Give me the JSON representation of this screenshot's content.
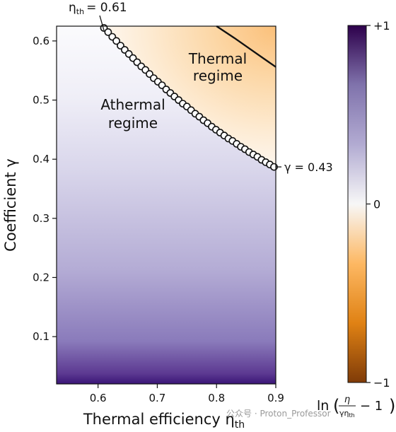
{
  "chart_data": {
    "type": "heatmap",
    "xlabel": "Thermal efficiency η",
    "xlabel_sub": "th",
    "ylabel": "Coefficient γ",
    "xlim": [
      0.53,
      0.9
    ],
    "ylim": [
      0.02,
      0.625
    ],
    "x_ticks": [
      0.6,
      0.7,
      0.8,
      0.9
    ],
    "x_tick_labels": [
      "0.6",
      "0.7",
      "0.8",
      "0.9"
    ],
    "y_ticks": [
      0.1,
      0.2,
      0.3,
      0.4,
      0.5,
      0.6
    ],
    "y_tick_labels": [
      "0.1",
      "0.2",
      "0.3",
      "0.4",
      "0.5",
      "0.6"
    ],
    "color_scale": {
      "min": -1,
      "max": 1,
      "colors": [
        "#7f3b08",
        "#e08214",
        "#fdb863",
        "#f7f7f7",
        "#b2abd2",
        "#8073ac",
        "#2d004b"
      ],
      "tick_labels": [
        "−1",
        "0",
        "+1"
      ],
      "label_prefix": "ln",
      "label_num": "η",
      "label_den": "γη",
      "label_den_sub": "th",
      "label_suffix": "− 1",
      "low_color": "#7f3b08",
      "high_color": "#2d004b"
    },
    "regions": {
      "thermal": [
        "Thermal",
        "regime"
      ],
      "athermal": [
        "Athermal",
        "regime"
      ]
    },
    "annotations": {
      "eta_label": "η",
      "eta_sub": "th",
      "eta_value": "= 0.61",
      "gamma_label": "γ = 0.43"
    },
    "boundary_points": [
      {
        "x": 0.61,
        "y": 0.622
      },
      {
        "x": 0.617,
        "y": 0.615
      },
      {
        "x": 0.624,
        "y": 0.607
      },
      {
        "x": 0.631,
        "y": 0.6
      },
      {
        "x": 0.638,
        "y": 0.592
      },
      {
        "x": 0.645,
        "y": 0.585
      },
      {
        "x": 0.652,
        "y": 0.578
      },
      {
        "x": 0.659,
        "y": 0.571
      },
      {
        "x": 0.666,
        "y": 0.564
      },
      {
        "x": 0.673,
        "y": 0.557
      },
      {
        "x": 0.68,
        "y": 0.551
      },
      {
        "x": 0.687,
        "y": 0.544
      },
      {
        "x": 0.694,
        "y": 0.537
      },
      {
        "x": 0.701,
        "y": 0.531
      },
      {
        "x": 0.708,
        "y": 0.525
      },
      {
        "x": 0.715,
        "y": 0.518
      },
      {
        "x": 0.722,
        "y": 0.512
      },
      {
        "x": 0.729,
        "y": 0.506
      },
      {
        "x": 0.736,
        "y": 0.5
      },
      {
        "x": 0.743,
        "y": 0.494
      },
      {
        "x": 0.75,
        "y": 0.489
      },
      {
        "x": 0.757,
        "y": 0.483
      },
      {
        "x": 0.764,
        "y": 0.477
      },
      {
        "x": 0.771,
        "y": 0.472
      },
      {
        "x": 0.778,
        "y": 0.466
      },
      {
        "x": 0.785,
        "y": 0.461
      },
      {
        "x": 0.792,
        "y": 0.455
      },
      {
        "x": 0.799,
        "y": 0.45
      },
      {
        "x": 0.806,
        "y": 0.445
      },
      {
        "x": 0.813,
        "y": 0.44
      },
      {
        "x": 0.82,
        "y": 0.435
      },
      {
        "x": 0.827,
        "y": 0.431
      },
      {
        "x": 0.834,
        "y": 0.426
      },
      {
        "x": 0.841,
        "y": 0.421
      },
      {
        "x": 0.848,
        "y": 0.417
      },
      {
        "x": 0.855,
        "y": 0.412
      },
      {
        "x": 0.862,
        "y": 0.408
      },
      {
        "x": 0.869,
        "y": 0.404
      },
      {
        "x": 0.876,
        "y": 0.399
      },
      {
        "x": 0.883,
        "y": 0.395
      },
      {
        "x": 0.89,
        "y": 0.391
      },
      {
        "x": 0.897,
        "y": 0.387
      }
    ],
    "thermal_curve": [
      {
        "x": 0.8,
        "y": 0.625
      },
      {
        "x": 0.83,
        "y": 0.605
      },
      {
        "x": 0.86,
        "y": 0.584
      },
      {
        "x": 0.88,
        "y": 0.57
      },
      {
        "x": 0.9,
        "y": 0.556
      }
    ],
    "gamma_value": 0.43,
    "eta_th_value": 0.61
  },
  "watermark": "公众号 · Proton_Professor"
}
